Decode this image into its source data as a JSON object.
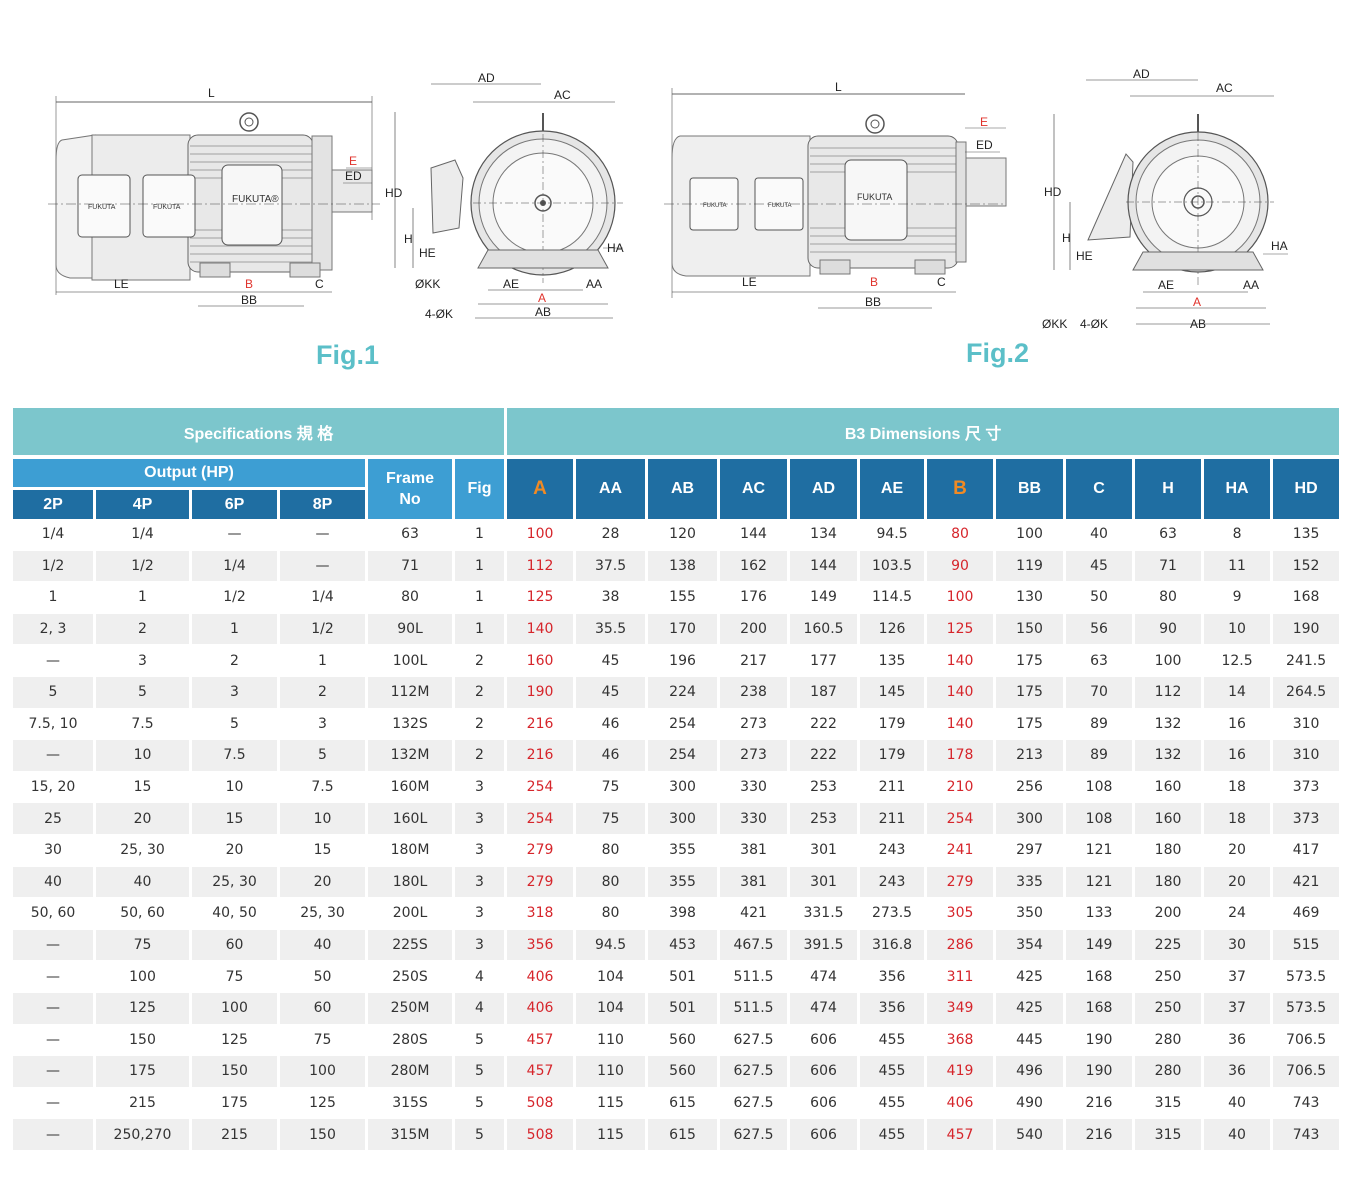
{
  "figures": {
    "fig1": {
      "caption": "Fig.1",
      "side_labels": {
        "L": "L",
        "E": "E",
        "ED": "ED",
        "LE": "LE",
        "B": "B",
        "BB": "BB",
        "C": "C",
        "brand": "FUKUTA",
        "brand_mark": "FUKUTA®"
      },
      "end_labels": {
        "AD": "AD",
        "AC": "AC",
        "HD": "HD",
        "H": "H",
        "HE": "HE",
        "HA": "HA",
        "KK": "ØKK",
        "K": "4-ØK",
        "AE": "AE",
        "A": "A",
        "AA": "AA",
        "AB": "AB"
      }
    },
    "fig2": {
      "caption": "Fig.2",
      "side_labels": {
        "L": "L",
        "E": "E",
        "ED": "ED",
        "LE": "LE",
        "B": "B",
        "BB": "BB",
        "C": "C",
        "brand": "FUKUTA"
      },
      "end_labels": {
        "AD": "AD",
        "AC": "AC",
        "HD": "HD",
        "H": "H",
        "HE": "HE",
        "HA": "HA",
        "KK": "ØKK",
        "K": "4-ØK",
        "AE": "AE",
        "A": "A",
        "AA": "AA",
        "AB": "AB"
      }
    }
  },
  "table": {
    "group_specs": "Specifications 規 格",
    "group_dims": "B3 Dimensions 尺 寸",
    "output_header": "Output (HP)",
    "frame_header_1": "Frame",
    "frame_header_2": "No",
    "fig_header": "Fig",
    "poles": [
      "2P",
      "4P",
      "6P",
      "8P"
    ],
    "dim_columns": [
      "A",
      "AA",
      "AB",
      "AC",
      "AD",
      "AE",
      "B",
      "BB",
      "C",
      "H",
      "HA",
      "HD"
    ],
    "highlight_color": "#f08a24",
    "red_value_color": "#d6252b",
    "rows": [
      [
        "1/4",
        "1/4",
        "—",
        "—",
        "63",
        "1",
        "100",
        "28",
        "120",
        "144",
        "134",
        "94.5",
        "80",
        "100",
        "40",
        "63",
        "8",
        "135"
      ],
      [
        "1/2",
        "1/2",
        "1/4",
        "—",
        "71",
        "1",
        "112",
        "37.5",
        "138",
        "162",
        "144",
        "103.5",
        "90",
        "119",
        "45",
        "71",
        "11",
        "152"
      ],
      [
        "1",
        "1",
        "1/2",
        "1/4",
        "80",
        "1",
        "125",
        "38",
        "155",
        "176",
        "149",
        "114.5",
        "100",
        "130",
        "50",
        "80",
        "9",
        "168"
      ],
      [
        "2, 3",
        "2",
        "1",
        "1/2",
        "90L",
        "1",
        "140",
        "35.5",
        "170",
        "200",
        "160.5",
        "126",
        "125",
        "150",
        "56",
        "90",
        "10",
        "190"
      ],
      [
        "—",
        "3",
        "2",
        "1",
        "100L",
        "2",
        "160",
        "45",
        "196",
        "217",
        "177",
        "135",
        "140",
        "175",
        "63",
        "100",
        "12.5",
        "241.5"
      ],
      [
        "5",
        "5",
        "3",
        "2",
        "112M",
        "2",
        "190",
        "45",
        "224",
        "238",
        "187",
        "145",
        "140",
        "175",
        "70",
        "112",
        "14",
        "264.5"
      ],
      [
        "7.5, 10",
        "7.5",
        "5",
        "3",
        "132S",
        "2",
        "216",
        "46",
        "254",
        "273",
        "222",
        "179",
        "140",
        "175",
        "89",
        "132",
        "16",
        "310"
      ],
      [
        "—",
        "10",
        "7.5",
        "5",
        "132M",
        "2",
        "216",
        "46",
        "254",
        "273",
        "222",
        "179",
        "178",
        "213",
        "89",
        "132",
        "16",
        "310"
      ],
      [
        "15, 20",
        "15",
        "10",
        "7.5",
        "160M",
        "3",
        "254",
        "75",
        "300",
        "330",
        "253",
        "211",
        "210",
        "256",
        "108",
        "160",
        "18",
        "373"
      ],
      [
        "25",
        "20",
        "15",
        "10",
        "160L",
        "3",
        "254",
        "75",
        "300",
        "330",
        "253",
        "211",
        "254",
        "300",
        "108",
        "160",
        "18",
        "373"
      ],
      [
        "30",
        "25, 30",
        "20",
        "15",
        "180M",
        "3",
        "279",
        "80",
        "355",
        "381",
        "301",
        "243",
        "241",
        "297",
        "121",
        "180",
        "20",
        "417"
      ],
      [
        "40",
        "40",
        "25, 30",
        "20",
        "180L",
        "3",
        "279",
        "80",
        "355",
        "381",
        "301",
        "243",
        "279",
        "335",
        "121",
        "180",
        "20",
        "421"
      ],
      [
        "50, 60",
        "50, 60",
        "40, 50",
        "25, 30",
        "200L",
        "3",
        "318",
        "80",
        "398",
        "421",
        "331.5",
        "273.5",
        "305",
        "350",
        "133",
        "200",
        "24",
        "469"
      ],
      [
        "—",
        "75",
        "60",
        "40",
        "225S",
        "3",
        "356",
        "94.5",
        "453",
        "467.5",
        "391.5",
        "316.8",
        "286",
        "354",
        "149",
        "225",
        "30",
        "515"
      ],
      [
        "—",
        "100",
        "75",
        "50",
        "250S",
        "4",
        "406",
        "104",
        "501",
        "511.5",
        "474",
        "356",
        "311",
        "425",
        "168",
        "250",
        "37",
        "573.5"
      ],
      [
        "—",
        "125",
        "100",
        "60",
        "250M",
        "4",
        "406",
        "104",
        "501",
        "511.5",
        "474",
        "356",
        "349",
        "425",
        "168",
        "250",
        "37",
        "573.5"
      ],
      [
        "—",
        "150",
        "125",
        "75",
        "280S",
        "5",
        "457",
        "110",
        "560",
        "627.5",
        "606",
        "455",
        "368",
        "445",
        "190",
        "280",
        "36",
        "706.5"
      ],
      [
        "—",
        "175",
        "150",
        "100",
        "280M",
        "5",
        "457",
        "110",
        "560",
        "627.5",
        "606",
        "455",
        "419",
        "496",
        "190",
        "280",
        "36",
        "706.5"
      ],
      [
        "—",
        "215",
        "175",
        "125",
        "315S",
        "5",
        "508",
        "115",
        "615",
        "627.5",
        "606",
        "455",
        "406",
        "490",
        "216",
        "315",
        "40",
        "743"
      ],
      [
        "—",
        "250,270",
        "215",
        "150",
        "315M",
        "5",
        "508",
        "115",
        "615",
        "627.5",
        "606",
        "455",
        "457",
        "540",
        "216",
        "315",
        "40",
        "743"
      ]
    ]
  }
}
